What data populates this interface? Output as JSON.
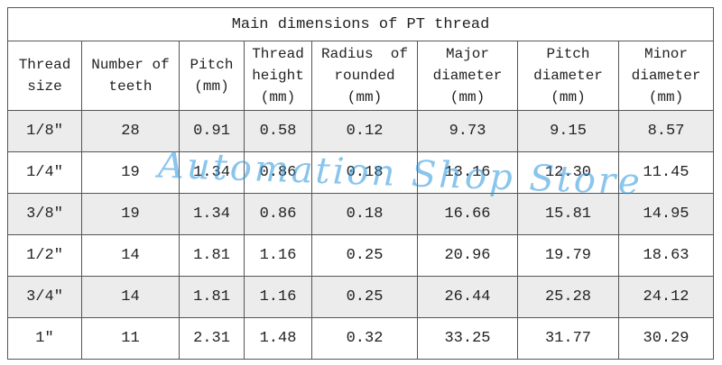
{
  "table": {
    "title": "Main dimensions of PT thread",
    "header": [
      [
        "Thread",
        "size"
      ],
      [
        "Number of",
        "teeth"
      ],
      [
        "Pitch",
        "(mm)"
      ],
      [
        "Thread",
        "height",
        "(mm)"
      ],
      [
        "Radius  of",
        "rounded",
        "(mm)"
      ],
      [
        "Major",
        "diameter",
        "(mm)"
      ],
      [
        "Pitch",
        "diameter",
        "(mm)"
      ],
      [
        "Minor",
        "diameter",
        "(mm)"
      ]
    ],
    "rows": [
      [
        "1/8″",
        "28",
        "0.91",
        "0.58",
        "0.12",
        "9.73",
        "9.15",
        "8.57"
      ],
      [
        "1/4″",
        "19",
        "1.34",
        "0.86",
        "0.18",
        "13.16",
        "12.30",
        "11.45"
      ],
      [
        "3/8″",
        "19",
        "1.34",
        "0.86",
        "0.18",
        "16.66",
        "15.81",
        "14.95"
      ],
      [
        "1/2″",
        "14",
        "1.81",
        "1.16",
        "0.25",
        "20.96",
        "19.79",
        "18.63"
      ],
      [
        "3/4″",
        "14",
        "1.81",
        "1.16",
        "0.25",
        "26.44",
        "25.28",
        "24.12"
      ],
      [
        "1″",
        "11",
        "2.31",
        "1.48",
        "0.32",
        "33.25",
        "31.77",
        "30.29"
      ]
    ],
    "watermark": "Automation Shop Store"
  }
}
